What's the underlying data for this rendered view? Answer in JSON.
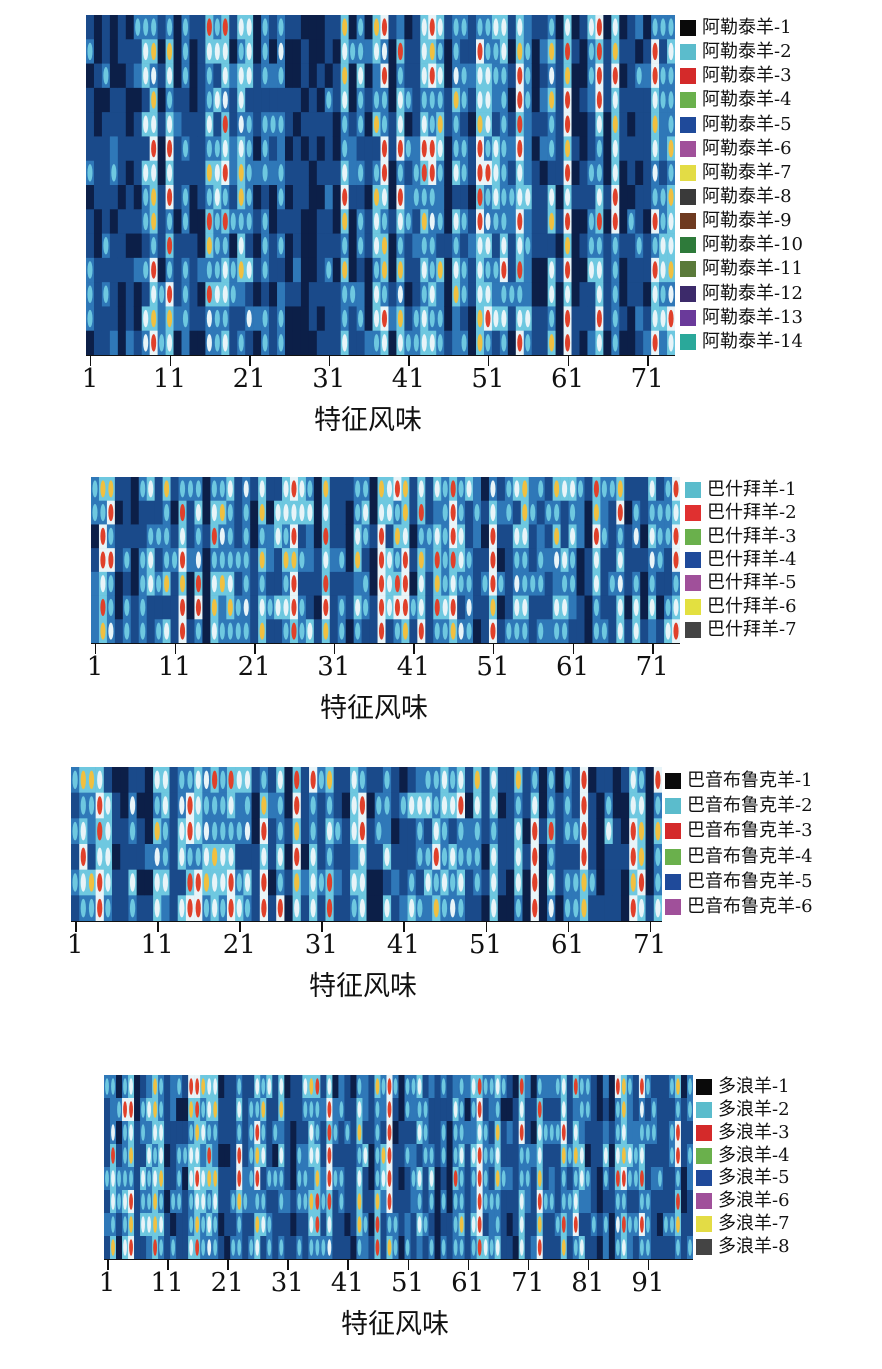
{
  "chart_data": [
    {
      "type": "heatmap",
      "xlabel": "特征风味",
      "xticks": [
        1,
        11,
        21,
        31,
        41,
        51,
        61,
        71
      ],
      "n_columns": 74,
      "rows": [
        "阿勒泰羊-1",
        "阿勒泰羊-2",
        "阿勒泰羊-3",
        "阿勒泰羊-4",
        "阿勒泰羊-5",
        "阿勒泰羊-6",
        "阿勒泰羊-7",
        "阿勒泰羊-8",
        "阿勒泰羊-9",
        "阿勒泰羊-10",
        "阿勒泰羊-11",
        "阿勒泰羊-12",
        "阿勒泰羊-13",
        "阿勒泰羊-14"
      ],
      "legend_colors": [
        "#0a0a0a",
        "#5bbccc",
        "#d42a2a",
        "#6ab04c",
        "#1f4a9a",
        "#a0509a",
        "#e3dc45",
        "#3a3a3a",
        "#6e3a20",
        "#2e7a3a",
        "#5a7a3a",
        "#3c2a6a",
        "#6a3a9a",
        "#2aa89a"
      ]
    },
    {
      "type": "heatmap",
      "xlabel": "特征风味",
      "xticks": [
        1,
        11,
        21,
        31,
        41,
        51,
        61,
        71
      ],
      "n_columns": 74,
      "rows": [
        "巴什拜羊-1",
        "巴什拜羊-2",
        "巴什拜羊-3",
        "巴什拜羊-4",
        "巴什拜羊-5",
        "巴什拜羊-6",
        "巴什拜羊-7"
      ],
      "legend_colors": [
        "#5bbccc",
        "#e03030",
        "#6ab04c",
        "#1f4a9a",
        "#a0509a",
        "#e3e040",
        "#444444"
      ]
    },
    {
      "type": "heatmap",
      "xlabel": "特征风味",
      "xticks": [
        1,
        11,
        21,
        31,
        41,
        51,
        61,
        71
      ],
      "n_columns": 72,
      "rows": [
        "巴音布鲁克羊-1",
        "巴音布鲁克羊-2",
        "巴音布鲁克羊-3",
        "巴音布鲁克羊-4",
        "巴音布鲁克羊-5",
        "巴音布鲁克羊-6"
      ],
      "legend_colors": [
        "#0a0a0a",
        "#5bbccc",
        "#d42a2a",
        "#6ab04c",
        "#1f4a9a",
        "#a0509a"
      ]
    },
    {
      "type": "heatmap",
      "xlabel": "特征风味",
      "xticks": [
        1,
        11,
        21,
        31,
        41,
        51,
        61,
        71,
        81,
        91
      ],
      "n_columns": 98,
      "rows": [
        "多浪羊-1",
        "多浪羊-2",
        "多浪羊-3",
        "多浪羊-4",
        "多浪羊-5",
        "多浪羊-6",
        "多浪羊-7",
        "多浪羊-8"
      ],
      "legend_colors": [
        "#0a0a0a",
        "#5bbccc",
        "#d42a2a",
        "#6ab04c",
        "#1f4a9a",
        "#a0509a",
        "#e3dc45",
        "#444444"
      ]
    }
  ]
}
